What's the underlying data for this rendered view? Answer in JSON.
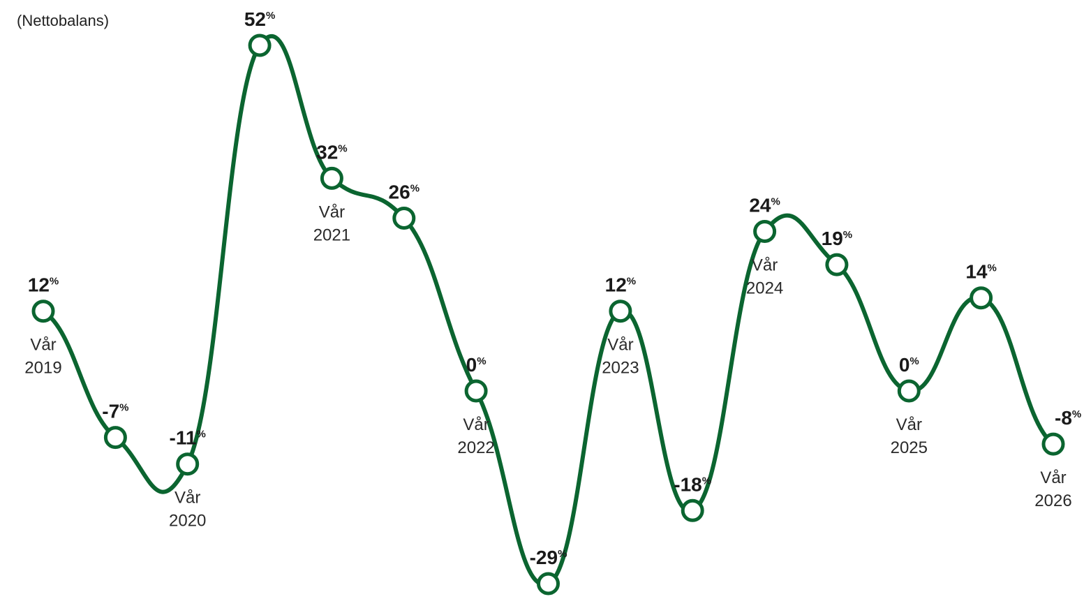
{
  "chart_data": {
    "type": "line",
    "title": "",
    "unit_label": "(Nettobalans)",
    "value_suffix": "%",
    "line_color": "#0b6530",
    "marker_fill": "#ffffff",
    "ylim": [
      -29,
      52
    ],
    "points": [
      {
        "value": 12,
        "display": "12",
        "label_line1": "Vår",
        "label_line2": "2019"
      },
      {
        "value": -7,
        "display": "-7",
        "label_line1": "",
        "label_line2": ""
      },
      {
        "value": -11,
        "display": "-11",
        "label_line1": "Vår",
        "label_line2": "2020"
      },
      {
        "value": 52,
        "display": "52",
        "label_line1": "",
        "label_line2": ""
      },
      {
        "value": 32,
        "display": "32",
        "label_line1": "Vår",
        "label_line2": "2021"
      },
      {
        "value": 26,
        "display": "26",
        "label_line1": "",
        "label_line2": ""
      },
      {
        "value": 0,
        "display": "0",
        "label_line1": "Vår",
        "label_line2": "2022"
      },
      {
        "value": -29,
        "display": "-29",
        "label_line1": "",
        "label_line2": ""
      },
      {
        "value": 12,
        "display": "12",
        "label_line1": "Vår",
        "label_line2": "2023"
      },
      {
        "value": -18,
        "display": "-18",
        "label_line1": "",
        "label_line2": ""
      },
      {
        "value": 24,
        "display": "24",
        "label_line1": "Vår",
        "label_line2": "2024"
      },
      {
        "value": 19,
        "display": "19",
        "label_line1": "",
        "label_line2": ""
      },
      {
        "value": 0,
        "display": "0",
        "label_line1": "Vår",
        "label_line2": "2025"
      },
      {
        "value": 14,
        "display": "14",
        "label_line1": "",
        "label_line2": ""
      },
      {
        "value": -8,
        "display": "-8",
        "label_line1": "Vår",
        "label_line2": "2026"
      }
    ]
  }
}
